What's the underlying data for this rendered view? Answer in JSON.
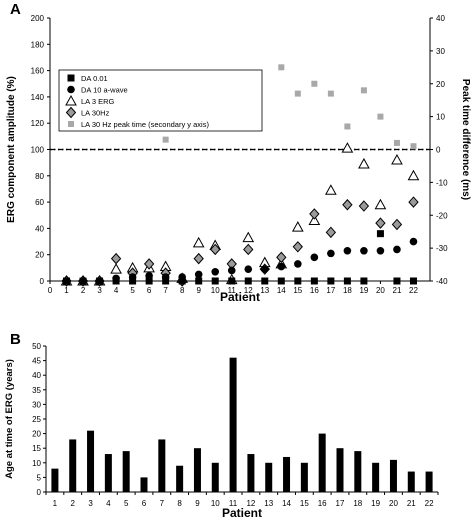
{
  "panels": {
    "a_letter": "A",
    "b_letter": "B"
  },
  "chart_data": [
    {
      "panel": "A",
      "type": "scatter",
      "xlabel": "Patient",
      "ylabel": "ERG component amplitude (%)",
      "y2label": "Peak time difference (ms)",
      "x": [
        1,
        2,
        3,
        4,
        5,
        6,
        7,
        8,
        9,
        10,
        11,
        12,
        13,
        14,
        15,
        16,
        17,
        18,
        19,
        20,
        21,
        22
      ],
      "x_ticks": [
        "0",
        "1",
        "2",
        "3",
        "4",
        "5",
        "6",
        "7",
        "8",
        "9",
        "10",
        "11",
        "12",
        "13",
        "14",
        "15",
        "16",
        "17",
        "18",
        "19",
        "20",
        "21",
        "22"
      ],
      "xlim": [
        0,
        23
      ],
      "ylim": [
        0,
        200
      ],
      "y_ticks": [
        "0",
        "20",
        "40",
        "60",
        "80",
        "100",
        "120",
        "140",
        "160",
        "180",
        "200"
      ],
      "y2lim": [
        -40,
        40
      ],
      "y2_ticks": [
        "-40",
        "-30",
        "-20",
        "-10",
        "0",
        "10",
        "20",
        "30",
        "40"
      ],
      "reference_lines": [
        {
          "axis": "y",
          "value": 100,
          "style": "dashed"
        },
        {
          "axis": "y2",
          "value": 0,
          "style": "dotted"
        }
      ],
      "series": [
        {
          "name": "DA 0.01",
          "marker": "square-black",
          "axis": "y",
          "values": [
            0,
            0,
            0,
            0,
            0,
            0,
            0,
            0,
            0,
            0,
            0,
            0,
            0,
            0,
            0,
            0,
            0,
            0,
            0,
            36,
            0,
            0
          ]
        },
        {
          "name": "DA 10 a-wave",
          "marker": "circle-black",
          "axis": "y",
          "values": [
            0,
            0,
            0,
            2,
            3,
            4,
            3,
            3,
            5,
            7,
            8,
            9,
            9,
            11,
            13,
            18,
            21,
            23,
            23,
            23,
            24,
            30
          ]
        },
        {
          "name": "LA 3 ERG",
          "marker": "triangle-open",
          "axis": "y",
          "values": [
            0,
            0,
            0,
            9,
            10,
            10,
            11,
            2,
            29,
            27,
            1,
            33,
            14,
            13,
            41,
            46,
            69,
            101,
            89,
            58,
            92,
            80
          ]
        },
        {
          "name": "LA 30Hz",
          "marker": "diamond-grey",
          "axis": "y",
          "values": [
            0,
            0,
            0,
            17,
            6,
            13,
            6,
            0,
            17,
            24,
            13,
            24,
            9,
            18,
            26,
            51,
            37,
            58,
            57,
            44,
            43,
            60
          ]
        },
        {
          "name": "LA 30 Hz peak time (secondary y axis)",
          "marker": "square-grey",
          "axis": "y2",
          "values": [
            null,
            null,
            null,
            17,
            19,
            14,
            3,
            null,
            18,
            19,
            13,
            16,
            null,
            25,
            17,
            20,
            17,
            7,
            18,
            10,
            2,
            1
          ]
        }
      ],
      "legend_placement": "upper-left"
    },
    {
      "panel": "B",
      "type": "bar",
      "xlabel": "Patient",
      "ylabel": "Age at time of ERG (years)",
      "categories": [
        "1",
        "2",
        "3",
        "4",
        "5",
        "6",
        "7",
        "8",
        "9",
        "10",
        "11",
        "12",
        "13",
        "14",
        "15",
        "16",
        "17",
        "18",
        "19",
        "20",
        "21",
        "22"
      ],
      "values": [
        8,
        18,
        21,
        13,
        14,
        5,
        18,
        9,
        15,
        10,
        46,
        13,
        10,
        12,
        10,
        20,
        15,
        14,
        10,
        11,
        7,
        7
      ],
      "ylim": [
        0,
        50
      ],
      "y_ticks": [
        "0",
        "5",
        "10",
        "15",
        "20",
        "25",
        "30",
        "35",
        "40",
        "45",
        "50"
      ],
      "color": "#000000"
    }
  ]
}
